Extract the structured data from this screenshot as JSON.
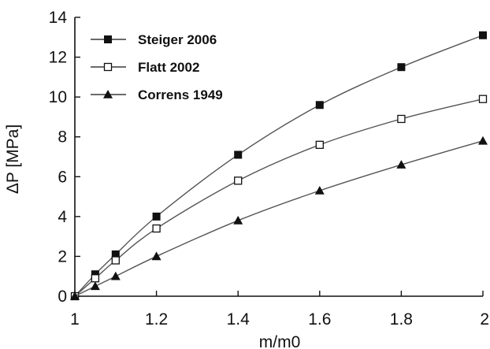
{
  "chart_data": {
    "type": "line",
    "xlabel": "m/m0",
    "ylabel": "ΔP [MPa]",
    "xlim": [
      1,
      2
    ],
    "ylim": [
      0,
      14
    ],
    "x_ticks": [
      1,
      1.2,
      1.4,
      1.6,
      1.8,
      2
    ],
    "x_tick_labels": [
      "1",
      "1.2",
      "1.4",
      "1.6",
      "1.8",
      "2"
    ],
    "y_ticks": [
      0,
      2,
      4,
      6,
      8,
      10,
      12,
      14
    ],
    "y_tick_labels": [
      "0",
      "2",
      "4",
      "6",
      "8",
      "10",
      "12",
      "14"
    ],
    "grid": false,
    "legend_position": "top-left",
    "line_color": "#555555",
    "marker_color": "#111111",
    "series": [
      {
        "name": "Steiger 2006",
        "marker": "filled-square",
        "x": [
          1,
          1.05,
          1.1,
          1.2,
          1.4,
          1.6,
          1.8,
          2
        ],
        "y": [
          0,
          1.1,
          2.1,
          4.0,
          7.1,
          9.6,
          11.5,
          13.1
        ]
      },
      {
        "name": "Flatt 2002",
        "marker": "open-square",
        "x": [
          1,
          1.05,
          1.1,
          1.2,
          1.4,
          1.6,
          1.8,
          2
        ],
        "y": [
          0,
          0.9,
          1.8,
          3.4,
          5.8,
          7.6,
          8.9,
          9.9
        ]
      },
      {
        "name": "Correns 1949",
        "marker": "filled-triangle",
        "x": [
          1,
          1.05,
          1.1,
          1.2,
          1.4,
          1.6,
          1.8,
          2
        ],
        "y": [
          0,
          0.5,
          1.0,
          2.0,
          3.8,
          5.3,
          6.6,
          7.8
        ]
      }
    ]
  }
}
